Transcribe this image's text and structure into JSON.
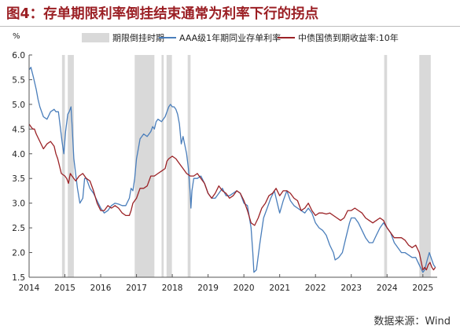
{
  "title": "图4：存单期限利率倒挂结束通常为利率下行的拐点",
  "source": "数据来源：Wind",
  "colors": {
    "title": "#9b1f24",
    "cd_rate": "#4a7ebb",
    "bond_yield": "#9b2226",
    "shade": "#d9d9d9"
  },
  "chart_data": {
    "type": "line",
    "title": "",
    "y_unit_label": "%",
    "ylim": [
      1.5,
      6.0
    ],
    "yticks": [
      "6.0",
      "5.5",
      "5.0",
      "4.5",
      "4.0",
      "3.5",
      "3.0",
      "2.5",
      "2.0",
      "1.5"
    ],
    "xlim": [
      2014.0,
      2025.4
    ],
    "xticks": [
      "2014",
      "2015",
      "2016",
      "2017",
      "2018",
      "2019",
      "2020",
      "2021",
      "2022",
      "2023",
      "2024",
      "2025"
    ],
    "legend_position": "top",
    "shaded_periods": {
      "name": "期限倒挂时期",
      "ranges": [
        [
          2014.92,
          2015.0
        ],
        [
          2015.08,
          2015.25
        ],
        [
          2016.95,
          2017.5
        ],
        [
          2017.7,
          2017.76
        ],
        [
          2017.84,
          2017.99
        ],
        [
          2018.43,
          2018.51
        ],
        [
          2023.92,
          2024.0
        ],
        [
          2024.9,
          2025.22
        ]
      ]
    },
    "series": [
      {
        "name": "AAA级1年期同业存单利率",
        "color": "#4a7ebb",
        "points": [
          [
            2014.0,
            5.7
          ],
          [
            2014.05,
            5.75
          ],
          [
            2014.12,
            5.55
          ],
          [
            2014.2,
            5.3
          ],
          [
            2014.25,
            5.1
          ],
          [
            2014.3,
            4.95
          ],
          [
            2014.4,
            4.75
          ],
          [
            2014.5,
            4.7
          ],
          [
            2014.6,
            4.85
          ],
          [
            2014.7,
            4.9
          ],
          [
            2014.75,
            4.85
          ],
          [
            2014.82,
            4.85
          ],
          [
            2014.87,
            4.55
          ],
          [
            2014.92,
            4.25
          ],
          [
            2014.97,
            4.0
          ],
          [
            2015.02,
            4.45
          ],
          [
            2015.08,
            4.8
          ],
          [
            2015.12,
            4.85
          ],
          [
            2015.17,
            4.95
          ],
          [
            2015.2,
            4.6
          ],
          [
            2015.25,
            3.9
          ],
          [
            2015.35,
            3.3
          ],
          [
            2015.42,
            3.0
          ],
          [
            2015.5,
            3.1
          ],
          [
            2015.55,
            3.5
          ],
          [
            2015.6,
            3.5
          ],
          [
            2015.7,
            3.3
          ],
          [
            2015.8,
            3.2
          ],
          [
            2015.9,
            3.05
          ],
          [
            2016.0,
            2.9
          ],
          [
            2016.1,
            2.8
          ],
          [
            2016.2,
            2.85
          ],
          [
            2016.3,
            2.95
          ],
          [
            2016.4,
            3.0
          ],
          [
            2016.5,
            2.98
          ],
          [
            2016.6,
            2.95
          ],
          [
            2016.7,
            2.95
          ],
          [
            2016.8,
            3.1
          ],
          [
            2016.85,
            3.3
          ],
          [
            2016.9,
            3.25
          ],
          [
            2016.95,
            3.5
          ],
          [
            2017.0,
            3.9
          ],
          [
            2017.05,
            4.1
          ],
          [
            2017.1,
            4.3
          ],
          [
            2017.2,
            4.4
          ],
          [
            2017.3,
            4.35
          ],
          [
            2017.4,
            4.45
          ],
          [
            2017.45,
            4.55
          ],
          [
            2017.5,
            4.5
          ],
          [
            2017.55,
            4.65
          ],
          [
            2017.6,
            4.7
          ],
          [
            2017.7,
            4.65
          ],
          [
            2017.8,
            4.75
          ],
          [
            2017.9,
            4.95
          ],
          [
            2017.95,
            5.0
          ],
          [
            2018.0,
            4.95
          ],
          [
            2018.05,
            4.95
          ],
          [
            2018.1,
            4.9
          ],
          [
            2018.15,
            4.8
          ],
          [
            2018.2,
            4.6
          ],
          [
            2018.25,
            4.2
          ],
          [
            2018.3,
            4.35
          ],
          [
            2018.4,
            4.0
          ],
          [
            2018.45,
            3.7
          ],
          [
            2018.5,
            3.2
          ],
          [
            2018.52,
            2.9
          ],
          [
            2018.55,
            3.25
          ],
          [
            2018.6,
            3.5
          ],
          [
            2018.7,
            3.5
          ],
          [
            2018.8,
            3.55
          ],
          [
            2018.9,
            3.4
          ],
          [
            2019.0,
            3.2
          ],
          [
            2019.1,
            3.1
          ],
          [
            2019.2,
            3.1
          ],
          [
            2019.3,
            3.2
          ],
          [
            2019.4,
            3.3
          ],
          [
            2019.5,
            3.15
          ],
          [
            2019.6,
            3.15
          ],
          [
            2019.7,
            3.2
          ],
          [
            2019.8,
            3.25
          ],
          [
            2019.9,
            3.2
          ],
          [
            2020.0,
            3.0
          ],
          [
            2020.1,
            2.95
          ],
          [
            2020.2,
            2.5
          ],
          [
            2020.25,
            2.0
          ],
          [
            2020.28,
            1.6
          ],
          [
            2020.35,
            1.65
          ],
          [
            2020.45,
            2.2
          ],
          [
            2020.55,
            2.7
          ],
          [
            2020.65,
            2.9
          ],
          [
            2020.75,
            3.1
          ],
          [
            2020.85,
            3.25
          ],
          [
            2020.95,
            2.95
          ],
          [
            2021.0,
            2.8
          ],
          [
            2021.1,
            3.05
          ],
          [
            2021.2,
            3.25
          ],
          [
            2021.3,
            3.05
          ],
          [
            2021.4,
            2.95
          ],
          [
            2021.5,
            2.9
          ],
          [
            2021.6,
            2.85
          ],
          [
            2021.7,
            2.8
          ],
          [
            2021.8,
            2.9
          ],
          [
            2021.9,
            2.8
          ],
          [
            2022.0,
            2.6
          ],
          [
            2022.1,
            2.5
          ],
          [
            2022.2,
            2.45
          ],
          [
            2022.3,
            2.35
          ],
          [
            2022.4,
            2.15
          ],
          [
            2022.5,
            2.0
          ],
          [
            2022.55,
            1.85
          ],
          [
            2022.65,
            1.9
          ],
          [
            2022.75,
            2.0
          ],
          [
            2022.85,
            2.3
          ],
          [
            2022.95,
            2.6
          ],
          [
            2023.0,
            2.7
          ],
          [
            2023.1,
            2.7
          ],
          [
            2023.2,
            2.6
          ],
          [
            2023.3,
            2.45
          ],
          [
            2023.4,
            2.3
          ],
          [
            2023.5,
            2.2
          ],
          [
            2023.6,
            2.2
          ],
          [
            2023.7,
            2.35
          ],
          [
            2023.8,
            2.5
          ],
          [
            2023.9,
            2.6
          ],
          [
            2024.0,
            2.5
          ],
          [
            2024.1,
            2.4
          ],
          [
            2024.2,
            2.2
          ],
          [
            2024.3,
            2.1
          ],
          [
            2024.4,
            2.0
          ],
          [
            2024.5,
            2.0
          ],
          [
            2024.6,
            1.95
          ],
          [
            2024.7,
            1.9
          ],
          [
            2024.8,
            1.9
          ],
          [
            2024.9,
            1.75
          ],
          [
            2025.0,
            1.6
          ],
          [
            2025.05,
            1.65
          ],
          [
            2025.12,
            1.85
          ],
          [
            2025.18,
            2.0
          ],
          [
            2025.25,
            1.85
          ],
          [
            2025.3,
            1.75
          ],
          [
            2025.35,
            1.7
          ]
        ]
      },
      {
        "name": "中债国债到期收益率:10年",
        "color": "#9b2226",
        "points": [
          [
            2014.0,
            4.6
          ],
          [
            2014.05,
            4.55
          ],
          [
            2014.1,
            4.5
          ],
          [
            2014.15,
            4.5
          ],
          [
            2014.2,
            4.4
          ],
          [
            2014.3,
            4.25
          ],
          [
            2014.4,
            4.1
          ],
          [
            2014.5,
            4.2
          ],
          [
            2014.6,
            4.25
          ],
          [
            2014.7,
            4.15
          ],
          [
            2014.75,
            4.0
          ],
          [
            2014.8,
            3.9
          ],
          [
            2014.9,
            3.6
          ],
          [
            2015.0,
            3.55
          ],
          [
            2015.05,
            3.5
          ],
          [
            2015.1,
            3.4
          ],
          [
            2015.15,
            3.6
          ],
          [
            2015.2,
            3.55
          ],
          [
            2015.3,
            3.45
          ],
          [
            2015.4,
            3.55
          ],
          [
            2015.5,
            3.6
          ],
          [
            2015.6,
            3.5
          ],
          [
            2015.7,
            3.45
          ],
          [
            2015.8,
            3.25
          ],
          [
            2015.9,
            3.0
          ],
          [
            2016.0,
            2.85
          ],
          [
            2016.1,
            2.85
          ],
          [
            2016.2,
            2.95
          ],
          [
            2016.3,
            2.9
          ],
          [
            2016.4,
            2.95
          ],
          [
            2016.5,
            2.9
          ],
          [
            2016.6,
            2.8
          ],
          [
            2016.7,
            2.75
          ],
          [
            2016.8,
            2.75
          ],
          [
            2016.85,
            2.85
          ],
          [
            2016.9,
            3.0
          ],
          [
            2017.0,
            3.1
          ],
          [
            2017.1,
            3.3
          ],
          [
            2017.2,
            3.3
          ],
          [
            2017.3,
            3.35
          ],
          [
            2017.4,
            3.55
          ],
          [
            2017.5,
            3.55
          ],
          [
            2017.6,
            3.6
          ],
          [
            2017.7,
            3.65
          ],
          [
            2017.8,
            3.7
          ],
          [
            2017.85,
            3.85
          ],
          [
            2017.9,
            3.9
          ],
          [
            2018.0,
            3.95
          ],
          [
            2018.1,
            3.9
          ],
          [
            2018.2,
            3.8
          ],
          [
            2018.3,
            3.7
          ],
          [
            2018.4,
            3.6
          ],
          [
            2018.5,
            3.55
          ],
          [
            2018.6,
            3.55
          ],
          [
            2018.7,
            3.6
          ],
          [
            2018.8,
            3.5
          ],
          [
            2018.9,
            3.4
          ],
          [
            2019.0,
            3.2
          ],
          [
            2019.1,
            3.1
          ],
          [
            2019.2,
            3.2
          ],
          [
            2019.3,
            3.35
          ],
          [
            2019.4,
            3.25
          ],
          [
            2019.5,
            3.2
          ],
          [
            2019.6,
            3.1
          ],
          [
            2019.7,
            3.15
          ],
          [
            2019.8,
            3.25
          ],
          [
            2019.9,
            3.2
          ],
          [
            2020.0,
            3.05
          ],
          [
            2020.1,
            2.85
          ],
          [
            2020.2,
            2.6
          ],
          [
            2020.3,
            2.55
          ],
          [
            2020.4,
            2.7
          ],
          [
            2020.5,
            2.9
          ],
          [
            2020.6,
            3.0
          ],
          [
            2020.7,
            3.15
          ],
          [
            2020.8,
            3.2
          ],
          [
            2020.9,
            3.3
          ],
          [
            2021.0,
            3.15
          ],
          [
            2021.1,
            3.25
          ],
          [
            2021.2,
            3.25
          ],
          [
            2021.3,
            3.2
          ],
          [
            2021.4,
            3.1
          ],
          [
            2021.5,
            3.05
          ],
          [
            2021.6,
            2.85
          ],
          [
            2021.7,
            2.9
          ],
          [
            2021.8,
            3.0
          ],
          [
            2021.9,
            2.85
          ],
          [
            2022.0,
            2.75
          ],
          [
            2022.1,
            2.8
          ],
          [
            2022.2,
            2.8
          ],
          [
            2022.3,
            2.78
          ],
          [
            2022.4,
            2.8
          ],
          [
            2022.5,
            2.75
          ],
          [
            2022.6,
            2.7
          ],
          [
            2022.7,
            2.65
          ],
          [
            2022.8,
            2.7
          ],
          [
            2022.9,
            2.85
          ],
          [
            2023.0,
            2.85
          ],
          [
            2023.1,
            2.9
          ],
          [
            2023.2,
            2.85
          ],
          [
            2023.3,
            2.8
          ],
          [
            2023.4,
            2.7
          ],
          [
            2023.5,
            2.65
          ],
          [
            2023.6,
            2.6
          ],
          [
            2023.7,
            2.65
          ],
          [
            2023.8,
            2.7
          ],
          [
            2023.9,
            2.65
          ],
          [
            2024.0,
            2.5
          ],
          [
            2024.1,
            2.4
          ],
          [
            2024.2,
            2.3
          ],
          [
            2024.3,
            2.3
          ],
          [
            2024.4,
            2.3
          ],
          [
            2024.5,
            2.25
          ],
          [
            2024.6,
            2.15
          ],
          [
            2024.7,
            2.1
          ],
          [
            2024.8,
            2.15
          ],
          [
            2024.9,
            2.0
          ],
          [
            2025.0,
            1.65
          ],
          [
            2025.05,
            1.7
          ],
          [
            2025.1,
            1.65
          ],
          [
            2025.15,
            1.75
          ],
          [
            2025.2,
            1.8
          ],
          [
            2025.25,
            1.7
          ],
          [
            2025.3,
            1.65
          ],
          [
            2025.35,
            1.7
          ]
        ]
      }
    ]
  }
}
